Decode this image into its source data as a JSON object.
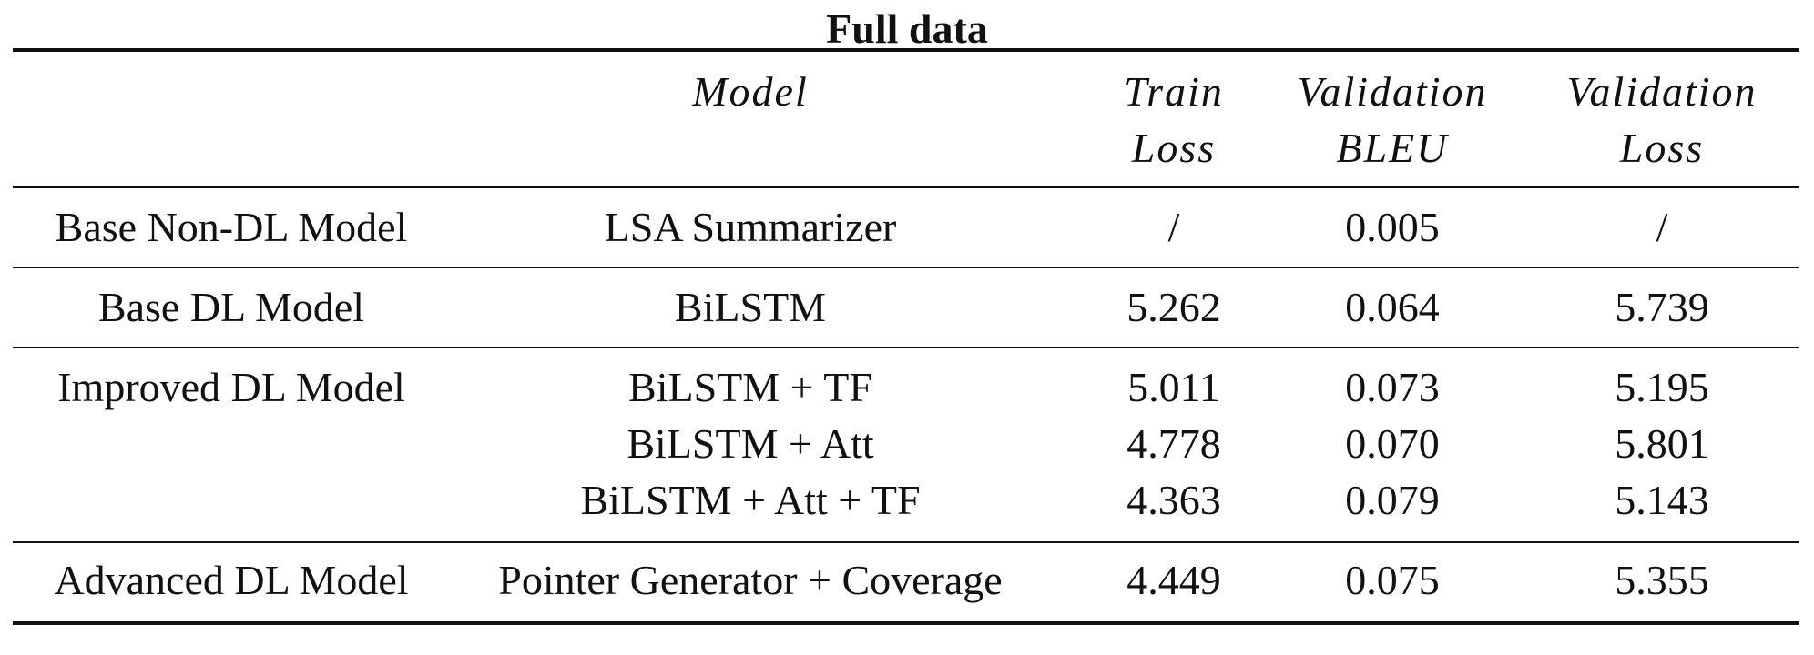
{
  "caption": "Full data",
  "columns": [
    {
      "line1": "",
      "line2": ""
    },
    {
      "line1": "Model",
      "line2": ""
    },
    {
      "line1": "Train",
      "line2": "Loss"
    },
    {
      "line1": "Validation",
      "line2": "BLEU"
    },
    {
      "line1": "Validation",
      "line2": "Loss"
    }
  ],
  "groups": [
    {
      "category": "Base Non-DL Model",
      "rows": [
        {
          "model": "LSA Summarizer",
          "train_loss": "/",
          "val_bleu": "0.005",
          "val_loss": "/"
        }
      ]
    },
    {
      "category": "Base DL Model",
      "rows": [
        {
          "model": "BiLSTM",
          "train_loss": "5.262",
          "val_bleu": "0.064",
          "val_loss": "5.739"
        }
      ]
    },
    {
      "category": "Improved DL Model",
      "rows": [
        {
          "model": "BiLSTM + TF",
          "train_loss": "5.011",
          "val_bleu": "0.073",
          "val_loss": "5.195"
        },
        {
          "model": "BiLSTM + Att",
          "train_loss": "4.778",
          "val_bleu": "0.070",
          "val_loss": "5.801"
        },
        {
          "model": "BiLSTM + Att + TF",
          "train_loss": "4.363",
          "val_bleu": "0.079",
          "val_loss": "5.143"
        }
      ]
    },
    {
      "category": "Advanced DL Model",
      "rows": [
        {
          "model": "Pointer Generator + Coverage",
          "train_loss": "4.449",
          "val_bleu": "0.075",
          "val_loss": "5.355"
        }
      ]
    }
  ]
}
